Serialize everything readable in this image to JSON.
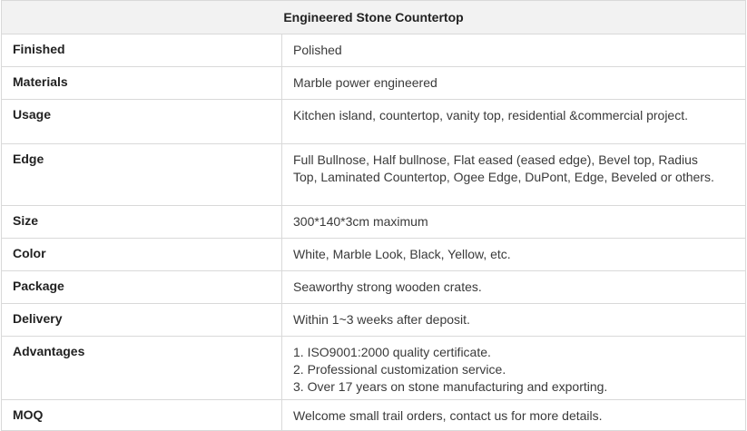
{
  "table": {
    "title": "Engineered Stone Countertop",
    "rows": [
      {
        "label": "Finished",
        "lines": [
          "Polished"
        ]
      },
      {
        "label": "Materials",
        "lines": [
          "Marble power engineered"
        ]
      },
      {
        "label": "Usage",
        "lines": [
          "Kitchen island, countertop, vanity top, residential &commercial project."
        ]
      },
      {
        "label": "Edge",
        "lines": [
          "Full Bullnose, Half bullnose, Flat eased (eased edge), Bevel top, Radius",
          "Top, Laminated Countertop, Ogee Edge, DuPont, Edge, Beveled or others."
        ]
      },
      {
        "label": "Size",
        "lines": [
          "300*140*3cm maximum"
        ]
      },
      {
        "label": "Color",
        "lines": [
          "White, Marble Look, Black, Yellow, etc."
        ]
      },
      {
        "label": "Package",
        "lines": [
          "Seaworthy strong wooden crates."
        ]
      },
      {
        "label": "Delivery",
        "lines": [
          "Within 1~3 weeks after deposit."
        ]
      },
      {
        "label": "Advantages",
        "lines": [
          "1. ISO9001:2000 quality certificate.",
          "2. Professional customization service.",
          "3. Over 17 years on stone manufacturing and exporting."
        ]
      },
      {
        "label": "MOQ",
        "lines": [
          "Welcome small trail orders, contact us for more details."
        ]
      }
    ]
  }
}
